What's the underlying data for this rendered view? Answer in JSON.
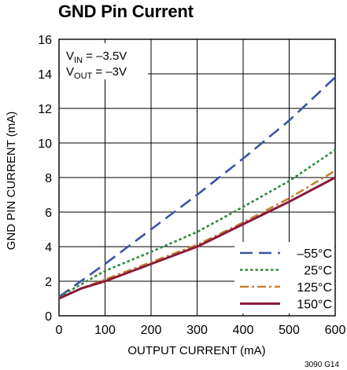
{
  "title": "GND Pin Current",
  "figure_code": "3090 G14",
  "annotation": {
    "line1": {
      "base": "V",
      "sub": "IN",
      "rest": " = –3.5V"
    },
    "line2": {
      "base": "V",
      "sub": "OUT",
      "rest": " = –3V"
    }
  },
  "chart_data": {
    "type": "line",
    "title": "GND Pin Current",
    "xlabel": "OUTPUT CURRENT (mA)",
    "ylabel": "GND PIN CURRENT (mA)",
    "xlim": [
      0,
      600
    ],
    "ylim": [
      0,
      16
    ],
    "xticks": [
      0,
      100,
      200,
      300,
      400,
      500,
      600
    ],
    "yticks": [
      0,
      2,
      4,
      6,
      8,
      10,
      12,
      14,
      16
    ],
    "grid": true,
    "legend_position": "bottom-right",
    "series": [
      {
        "name": "–55°C",
        "color": "#3a55a4",
        "dash": "long-dash",
        "x": [
          0,
          100,
          200,
          300,
          400,
          500,
          600
        ],
        "y": [
          1.1,
          3.0,
          5.0,
          7.0,
          9.1,
          11.3,
          13.8
        ]
      },
      {
        "name": "25°C",
        "color": "#2e8b3e",
        "dash": "dotted",
        "x": [
          0,
          50,
          100,
          200,
          300,
          400,
          500,
          600
        ],
        "y": [
          1.1,
          1.85,
          2.6,
          3.7,
          4.85,
          6.3,
          7.8,
          9.6
        ]
      },
      {
        "name": "125°C",
        "color": "#c9812e",
        "dash": "dash-dot",
        "x": [
          0,
          50,
          100,
          200,
          300,
          400,
          500,
          600
        ],
        "y": [
          1.0,
          1.6,
          2.1,
          3.1,
          4.1,
          5.4,
          6.8,
          8.4
        ]
      },
      {
        "name": "150°C",
        "color": "#8b1a3a",
        "dash": "solid",
        "x": [
          0,
          50,
          100,
          200,
          300,
          400,
          500,
          600
        ],
        "y": [
          1.0,
          1.6,
          2.0,
          3.0,
          4.0,
          5.3,
          6.6,
          8.0
        ]
      }
    ]
  }
}
